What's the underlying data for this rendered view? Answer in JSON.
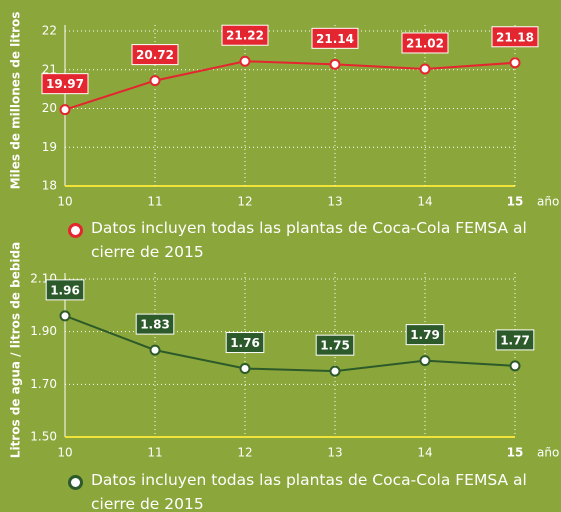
{
  "chart_data": [
    {
      "type": "line",
      "y_label": "Miles de millones de litros",
      "x_label": "año",
      "categories": [
        "10",
        "11",
        "12",
        "13",
        "14",
        "15"
      ],
      "series": [
        {
          "name": "Datos incluyen todas las plantas de Coca-Cola FEMSA al cierre de 2015",
          "color": "#e3262f",
          "values": [
            19.97,
            20.72,
            21.22,
            21.14,
            21.02,
            21.18
          ]
        }
      ],
      "ylim": [
        18,
        22
      ],
      "yticks": [
        18,
        19,
        20,
        21,
        22
      ],
      "grid": true
    },
    {
      "type": "line",
      "y_label": "Litros de agua / litros de bebida",
      "x_label": "año",
      "categories": [
        "10",
        "11",
        "12",
        "13",
        "14",
        "15"
      ],
      "series": [
        {
          "name": "Datos incluyen todas las plantas de Coca-Cola FEMSA al cierre de 2015",
          "color": "#2d5a2a",
          "values": [
            1.96,
            1.83,
            1.76,
            1.75,
            1.79,
            1.77
          ]
        }
      ],
      "ylim": [
        1.5,
        2.1
      ],
      "yticks": [
        {
          "value": 1.5,
          "label": "1.50"
        },
        {
          "value": 1.7,
          "label": "1.70"
        },
        {
          "value": 1.9,
          "label": "1.90"
        },
        {
          "value": 2.1,
          "label": "2.10"
        }
      ],
      "grid": true
    }
  ]
}
